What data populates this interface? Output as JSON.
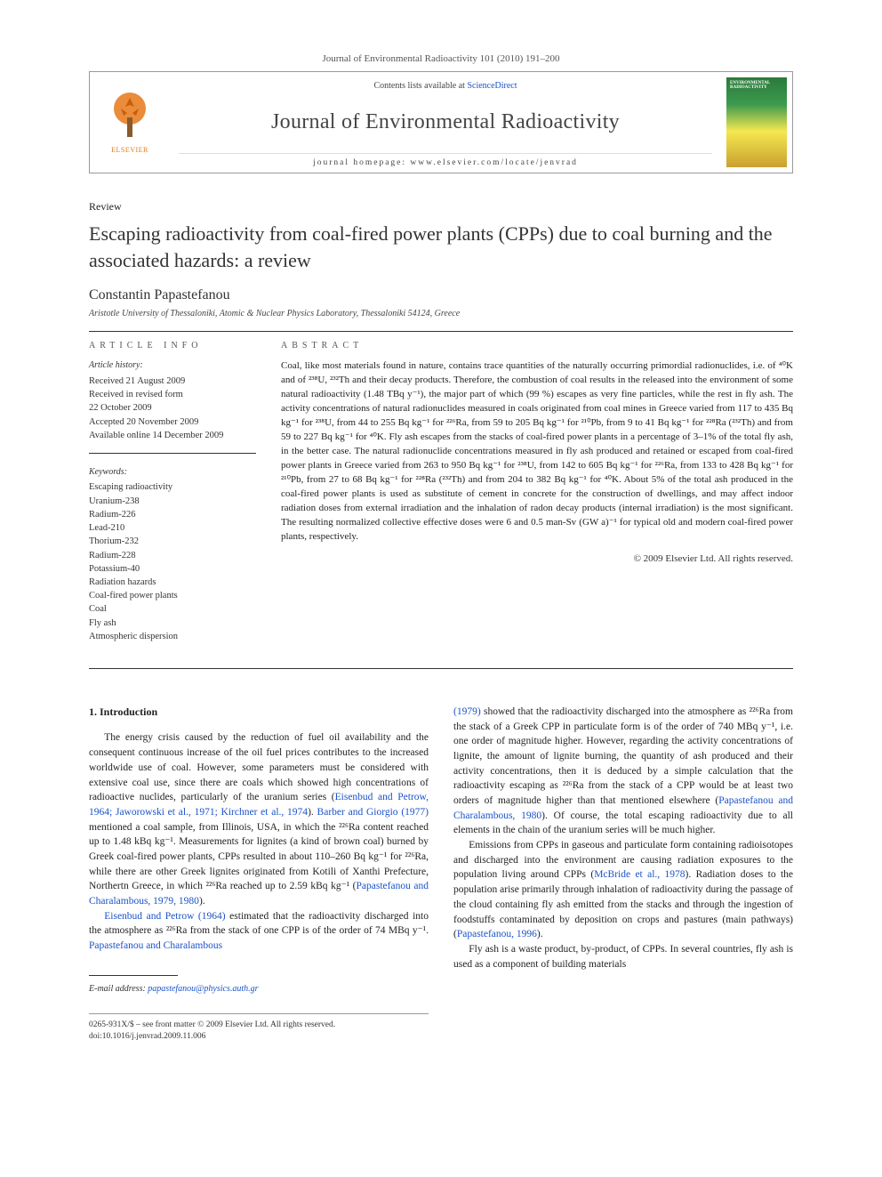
{
  "citation": "Journal of Environmental Radioactivity 101 (2010) 191–200",
  "banner": {
    "contents_prefix": "Contents lists available at ",
    "contents_link": "ScienceDirect",
    "journal": "Journal of Environmental Radioactivity",
    "homepage_prefix": "journal homepage: ",
    "homepage_url": "www.elsevier.com/locate/jenvrad",
    "publisher_label": "ELSEVIER",
    "cover_text": "ENVIRONMENTAL RADIOACTIVITY"
  },
  "article": {
    "type": "Review",
    "title": "Escaping radioactivity from coal-fired power plants (CPPs) due to coal burning and the associated hazards: a review",
    "author": "Constantin Papastefanou",
    "affiliation": "Aristotle University of Thessaloniki, Atomic & Nuclear Physics Laboratory, Thessaloniki 54124, Greece"
  },
  "info": {
    "label": "ARTICLE INFO",
    "history_title": "Article history:",
    "history_lines": [
      "Received 21 August 2009",
      "Received in revised form",
      "22 October 2009",
      "Accepted 20 November 2009",
      "Available online 14 December 2009"
    ],
    "keywords_title": "Keywords:",
    "keywords": [
      "Escaping radioactivity",
      "Uranium-238",
      "Radium-226",
      "Lead-210",
      "Thorium-232",
      "Radium-228",
      "Potassium-40",
      "Radiation hazards",
      "Coal-fired power plants",
      "Coal",
      "Fly ash",
      "Atmospheric dispersion"
    ]
  },
  "abstract": {
    "label": "ABSTRACT",
    "text": "Coal, like most materials found in nature, contains trace quantities of the naturally occurring primordial radionuclides, i.e. of ⁴⁰K and of ²³⁸U, ²³²Th and their decay products. Therefore, the combustion of coal results in the released into the environment of some natural radioactivity (1.48 TBq y⁻¹), the major part of which (99 %) escapes as very fine particles, while the rest in fly ash. The activity concentrations of natural radionuclides measured in coals originated from coal mines in Greece varied from 117 to 435 Bq kg⁻¹ for ²³⁸U, from 44 to 255 Bq kg⁻¹ for ²²⁶Ra, from 59 to 205 Bq kg⁻¹ for ²¹⁰Pb, from 9 to 41 Bq kg⁻¹ for ²²⁸Ra (²³²Th) and from 59 to 227 Bq kg⁻¹ for ⁴⁰K. Fly ash escapes from the stacks of coal-fired power plants in a percentage of 3–1% of the total fly ash, in the better case. The natural radionuclide concentrations measured in fly ash produced and retained or escaped from coal-fired power plants in Greece varied from 263 to 950 Bq kg⁻¹ for ²³⁸U, from 142 to 605 Bq kg⁻¹ for ²²⁶Ra, from 133 to 428 Bq kg⁻¹ for ²¹⁰Pb, from 27 to 68 Bq kg⁻¹ for ²²⁸Ra (²³²Th) and from 204 to 382 Bq kg⁻¹ for ⁴⁰K. About 5% of the total ash produced in the coal-fired power plants is used as substitute of cement in concrete for the construction of dwellings, and may affect indoor radiation doses from external irradiation and the inhalation of radon decay products (internal irradiation) is the most significant. The resulting normalized collective effective doses were 6 and 0.5 man-Sv (GW a)⁻¹ for typical old and modern coal-fired power plants, respectively.",
    "copyright": "© 2009 Elsevier Ltd. All rights reserved."
  },
  "body": {
    "heading": "1. Introduction",
    "left_paras": [
      "The energy crisis caused by the reduction of fuel oil availability and the consequent continuous increase of the oil fuel prices contributes to the increased worldwide use of coal. However, some parameters must be considered with extensive coal use, since there are coals which showed high concentrations of radioactive nuclides, particularly of the uranium series (<span class=\"ref\">Eisenbud and Petrow, 1964; Jaworowski et al., 1971; Kirchner et al., 1974</span>). <span class=\"ref\">Barber and Giorgio (1977)</span> mentioned a coal sample, from Illinois, USA, in which the ²²⁶Ra content reached up to 1.48 kBq kg⁻¹. Measurements for lignites (a kind of brown coal) burned by Greek coal-fired power plants, CPPs resulted in about 110–260 Bq kg⁻¹ for ²²⁶Ra, while there are other Greek lignites originated from Kotili of Xanthi Prefecture, Northertn Greece, in which ²²⁶Ra reached up to 2.59 kBq kg⁻¹ (<span class=\"ref\">Papastefanou and Charalambous, 1979, 1980</span>).",
      "<span class=\"ref\">Eisenbud and Petrow (1964)</span> estimated that the radioactivity discharged into the atmosphere as ²²⁶Ra from the stack of one CPP is of the order of 74 MBq y⁻¹. <span class=\"ref\">Papastefanou and Charalambous</span>"
    ],
    "right_paras": [
      "<span class=\"ref\">(1979)</span> showed that the radioactivity discharged into the atmosphere as ²²⁶Ra from the stack of a Greek CPP in particulate form is of the order of 740 MBq y⁻¹, i.e. one order of magnitude higher. However, regarding the activity concentrations of lignite, the amount of lignite burning, the quantity of ash produced and their activity concentrations, then it is deduced by a simple calculation that the radioactivity escaping as ²²⁶Ra from the stack of a CPP would be at least two orders of magnitude higher than that mentioned elsewhere (<span class=\"ref\">Papastefanou and Charalambous, 1980</span>). Of course, the total escaping radioactivity due to all elements in the chain of the uranium series will be much higher.",
      "Emissions from CPPs in gaseous and particulate form containing radioisotopes and discharged into the environment are causing radiation exposures to the population living around CPPs (<span class=\"ref\">McBride et al., 1978</span>). Radiation doses to the population arise primarily through inhalation of radioactivity during the passage of the cloud containing fly ash emitted from the stacks and through the ingestion of foodstuffs contaminated by deposition on crops and pastures (main pathways) (<span class=\"ref\">Papastefanou, 1996</span>).",
      "Fly ash is a waste product, by-product, of CPPs. In several countries, fly ash is used as a component of building materials"
    ]
  },
  "footer": {
    "email_label": "E-mail address: ",
    "email": "papastefanou@physics.auth.gr",
    "issn_line": "0265-931X/$ – see front matter © 2009 Elsevier Ltd. All rights reserved.",
    "doi_line": "doi:10.1016/j.jenvrad.2009.11.006"
  }
}
